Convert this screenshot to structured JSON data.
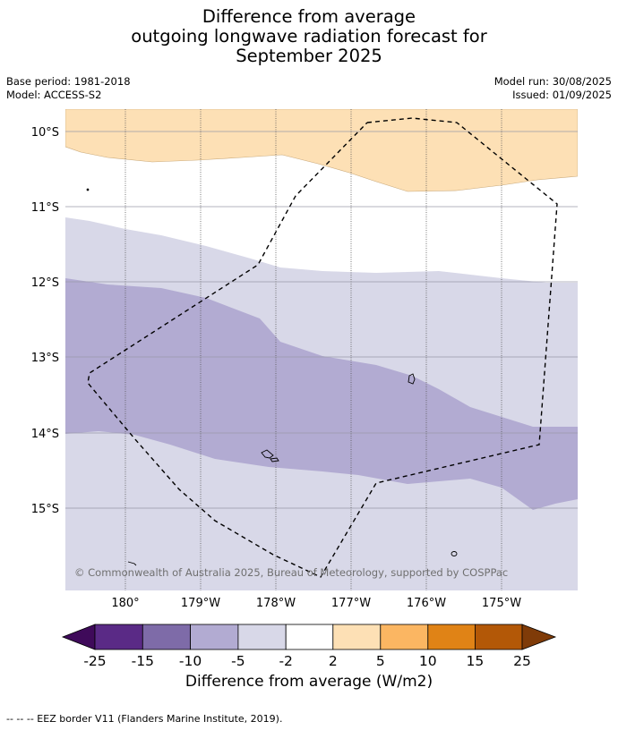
{
  "title": {
    "line1": "Difference from average",
    "line2": "outgoing longwave radiation forecast for",
    "line3": "September 2025"
  },
  "meta": {
    "base_period": "Base period: 1981-2018",
    "model": "Model: ACCESS-S2",
    "model_run": "Model run: 30/08/2025",
    "issued": "Issued: 01/09/2025"
  },
  "map": {
    "lat_labels": [
      "10°S",
      "11°S",
      "12°S",
      "13°S",
      "14°S",
      "15°S"
    ],
    "lon_labels": [
      "180°",
      "179°W",
      "178°W",
      "177°W",
      "176°W",
      "175°W"
    ],
    "attribution": "© Commonwealth of Australia 2025, Bureau of Meteorology, supported by COSPPac"
  },
  "colorbar": {
    "ticks": [
      "-25",
      "-15",
      "-10",
      "-5",
      "-2",
      "2",
      "5",
      "10",
      "15",
      "25"
    ],
    "colors": [
      "#3f0a5a",
      "#5a2a86",
      "#7e6ba8",
      "#b2abd2",
      "#d8d8e8",
      "#ffffff",
      "#fde0b5",
      "#fbb662",
      "#e08316",
      "#b35807",
      "#7f3b08"
    ],
    "label": "Difference from average (W/m2)"
  },
  "footer": "--  --  -- EEZ border V11 (Flanders Marine Institute, 2019)."
}
